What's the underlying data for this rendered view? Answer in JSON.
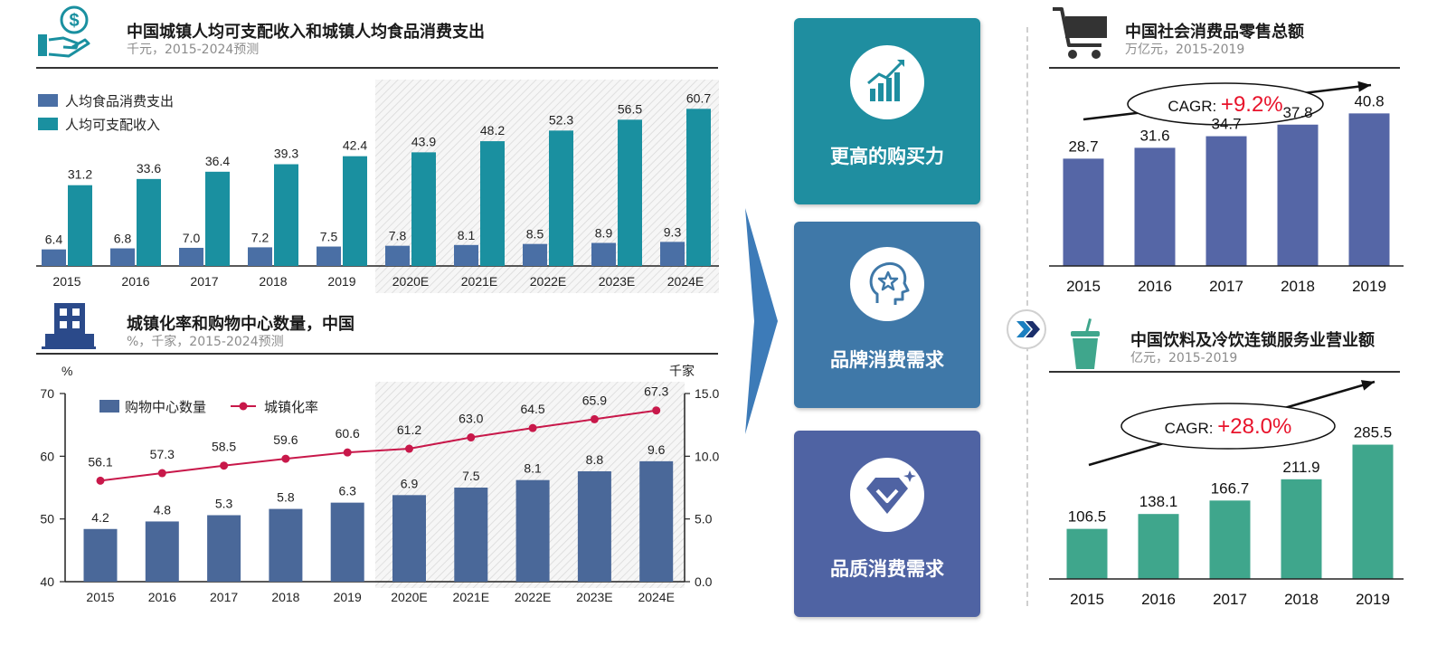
{
  "panel1": {
    "title": "中国城镇人均可支配收入和城镇人均食品消费支出",
    "subtitle": "千元，2015-2024预测"
  },
  "panel2": {
    "title": "城镇化率和购物中心数量，中国",
    "subtitle": "%，千家，2015-2024预测"
  },
  "center": {
    "cards": [
      {
        "label": "更高的购买力",
        "icon": "rising-chart-icon",
        "color": "#1f8ea0"
      },
      {
        "label": "品牌消费需求",
        "icon": "head-star-icon",
        "color": "#3f78a8"
      },
      {
        "label": "品质消费需求",
        "icon": "diamond-icon",
        "color": "#4f63a3"
      }
    ]
  },
  "panel3": {
    "title": "中国社会消费品零售总额",
    "subtitle": "万亿元，2015-2019"
  },
  "panel4": {
    "title": "中国饮料及冷饮连锁服务业营业额",
    "subtitle": "亿元，2015-2019"
  },
  "colors": {
    "food": "#4a6fa5",
    "income": "#1a90a0",
    "mall": "#4a6899",
    "urban_line": "#c8184a",
    "retail": "#5566a6",
    "beverage": "#3fa68c",
    "cagr": "#e8132b"
  },
  "chart_data": [
    {
      "type": "bar",
      "categories": [
        "2015",
        "2016",
        "2017",
        "2018",
        "2019",
        "2020E",
        "2021E",
        "2022E",
        "2023E",
        "2024E"
      ],
      "series": [
        {
          "name": "人均食品消费支出",
          "values": [
            6.4,
            6.8,
            7.0,
            7.2,
            7.5,
            7.8,
            8.1,
            8.5,
            8.9,
            9.3
          ]
        },
        {
          "name": "人均可支配收入",
          "values": [
            31.2,
            33.6,
            36.4,
            39.3,
            42.4,
            43.9,
            48.2,
            52.3,
            56.5,
            60.7
          ]
        }
      ],
      "ylim": [
        0,
        65
      ]
    },
    {
      "type": "bar",
      "categories": [
        "2015",
        "2016",
        "2017",
        "2018",
        "2019",
        "2020E",
        "2021E",
        "2022E",
        "2023E",
        "2024E"
      ],
      "series": [
        {
          "name": "购物中心数量",
          "values": [
            4.2,
            4.8,
            5.3,
            5.8,
            6.3,
            6.9,
            7.5,
            8.1,
            8.8,
            9.6
          ],
          "axis": "right"
        },
        {
          "name": "城镇化率",
          "values": [
            56.1,
            57.3,
            58.5,
            59.6,
            60.6,
            61.2,
            63.0,
            64.5,
            65.9,
            67.3
          ],
          "axis": "left",
          "type": "line"
        }
      ],
      "ylabel_left": "%",
      "ylabel_right": "千家",
      "ylim_left": [
        40,
        70
      ],
      "ylim_right": [
        0,
        15
      ],
      "yticks_left": [
        "40",
        "50",
        "60",
        "70"
      ],
      "yticks_right": [
        "0.0",
        "5.0",
        "10.0",
        "15.0"
      ]
    },
    {
      "type": "bar",
      "categories": [
        "2015",
        "2016",
        "2017",
        "2018",
        "2019"
      ],
      "values": [
        28.7,
        31.6,
        34.7,
        37.8,
        40.8
      ],
      "cagr_label": "CAGR: ",
      "cagr_value": "+9.2%",
      "ylim": [
        0,
        45
      ]
    },
    {
      "type": "bar",
      "categories": [
        "2015",
        "2016",
        "2017",
        "2018",
        "2019"
      ],
      "values": [
        106.5,
        138.1,
        166.7,
        211.9,
        285.5
      ],
      "cagr_label": "CAGR: ",
      "cagr_value": "+28.0%",
      "ylim": [
        0,
        300
      ]
    }
  ]
}
